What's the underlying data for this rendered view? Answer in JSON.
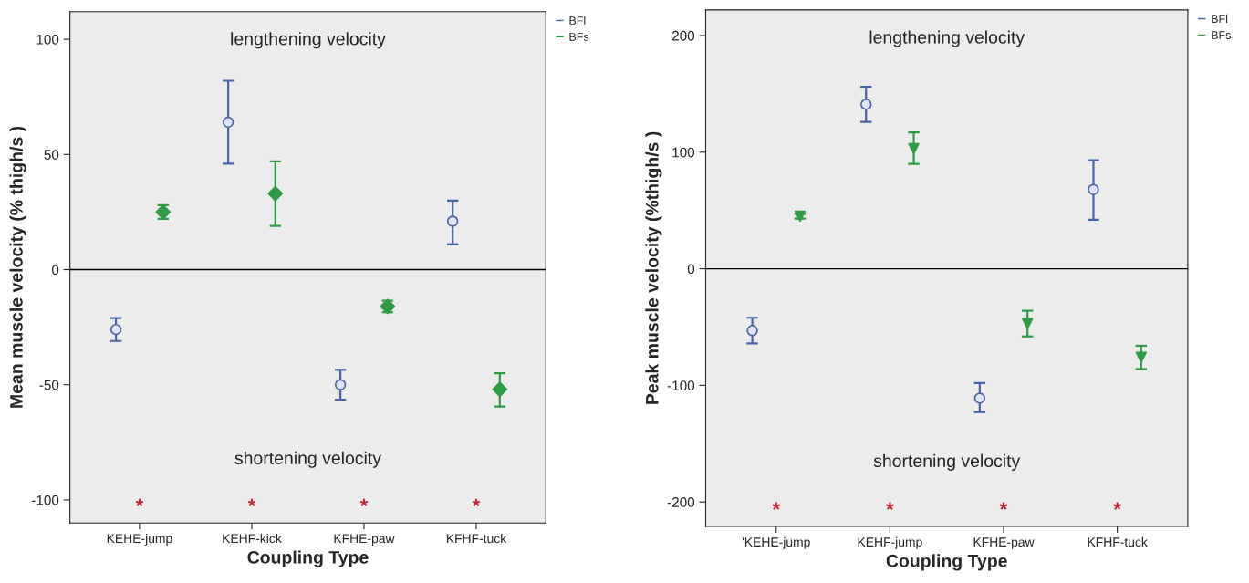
{
  "chart_data": [
    {
      "type": "scatter",
      "xlabel": "Coupling Type",
      "ylabel": "Mean muscle velocity (% thigh/s )",
      "categories": [
        "KEHE-jump",
        "KEHF-kick",
        "KFHE-paw",
        "KFHF-tuck"
      ],
      "series": [
        {
          "name": "BFl",
          "color": "#4a64a6",
          "marker": "circle",
          "values": [
            -26,
            64,
            -50,
            21
          ],
          "errors": [
            [
              -31,
              -21
            ],
            [
              46,
              82
            ],
            [
              -56.5,
              -43.5
            ],
            [
              11,
              30
            ]
          ]
        },
        {
          "name": "BFs",
          "color": "#2f9b45",
          "marker": "diamond",
          "values": [
            25,
            33,
            -16,
            -52
          ],
          "errors": [
            [
              22,
              28
            ],
            [
              19,
              47
            ],
            [
              -18.5,
              -13.5
            ],
            [
              -59.5,
              -45
            ]
          ]
        }
      ],
      "ylim": [
        -110,
        112
      ],
      "yticks": [
        -100,
        -50,
        0,
        50,
        100
      ],
      "grid": false,
      "legend": "top right",
      "ref_lines": [
        {
          "axis": "y",
          "value": 0,
          "color": "#000000"
        }
      ],
      "annotations": [
        "lengthening velocity",
        "shortening velocity",
        "*",
        "*",
        "*",
        "*"
      ]
    },
    {
      "type": "scatter",
      "xlabel": "Coupling Type",
      "ylabel": "Peak muscle velocity (%thigh/s )",
      "categories": [
        "'KEHE-jump",
        "KEHF-jump",
        "KFHE-paw",
        "KFHF-tuck"
      ],
      "series": [
        {
          "name": "BFl",
          "color": "#4a64a6",
          "marker": "circle",
          "values": [
            -53,
            141,
            -111,
            68
          ],
          "errors": [
            [
              -64,
              -42
            ],
            [
              126,
              156
            ],
            [
              -123,
              -98
            ],
            [
              42,
              93
            ]
          ]
        },
        {
          "name": "BFs",
          "color": "#2f9b45",
          "marker": "triangle",
          "values": [
            45,
            103,
            -47,
            -76
          ],
          "errors": [
            [
              43,
              47
            ],
            [
              90,
              117
            ],
            [
              -58,
              -36
            ],
            [
              -86,
              -66
            ]
          ]
        }
      ],
      "ylim": [
        -221,
        222
      ],
      "yticks": [
        -200,
        -100,
        0,
        100,
        200
      ],
      "grid": false,
      "legend": "top right",
      "ref_lines": [
        {
          "axis": "y",
          "value": 0,
          "color": "#000000"
        }
      ],
      "annotations": [
        "lengthening velocity",
        "shortening velocity",
        "*",
        "*",
        "*",
        "*"
      ]
    }
  ]
}
